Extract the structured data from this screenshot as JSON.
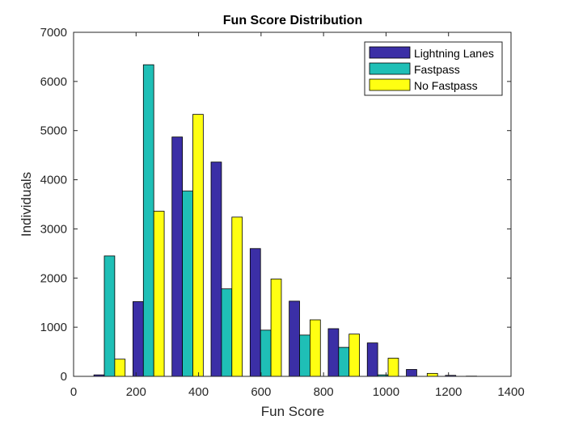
{
  "chart_data": {
    "type": "bar",
    "title": "Fun Score Distribution",
    "xlabel": "Fun Score",
    "ylabel": "Individuals",
    "xlim": [
      0,
      1400
    ],
    "ylim": [
      0,
      7000
    ],
    "xticks": [
      "0",
      "200",
      "400",
      "600",
      "800",
      "1000",
      "1200",
      "1400"
    ],
    "yticks": [
      "0",
      "1000",
      "2000",
      "3000",
      "4000",
      "5000",
      "6000",
      "7000"
    ],
    "bin_centers": [
      115,
      240,
      365,
      490,
      615,
      740,
      865,
      990,
      1115,
      1240
    ],
    "bin_width": 125,
    "legend_position": "top-right",
    "grid": false,
    "series": [
      {
        "name": "Lightning Lanes",
        "color": "#3b2fa6",
        "values": [
          30,
          1520,
          4870,
          4360,
          2600,
          1530,
          970,
          680,
          140,
          20
        ]
      },
      {
        "name": "Fastpass",
        "color": "#1fbfb6",
        "values": [
          2450,
          6340,
          3770,
          1780,
          940,
          840,
          590,
          30,
          0,
          0
        ]
      },
      {
        "name": "No Fastpass",
        "color": "#ffff12",
        "values": [
          350,
          3360,
          5330,
          3240,
          1980,
          1150,
          860,
          370,
          60,
          5
        ]
      }
    ]
  }
}
